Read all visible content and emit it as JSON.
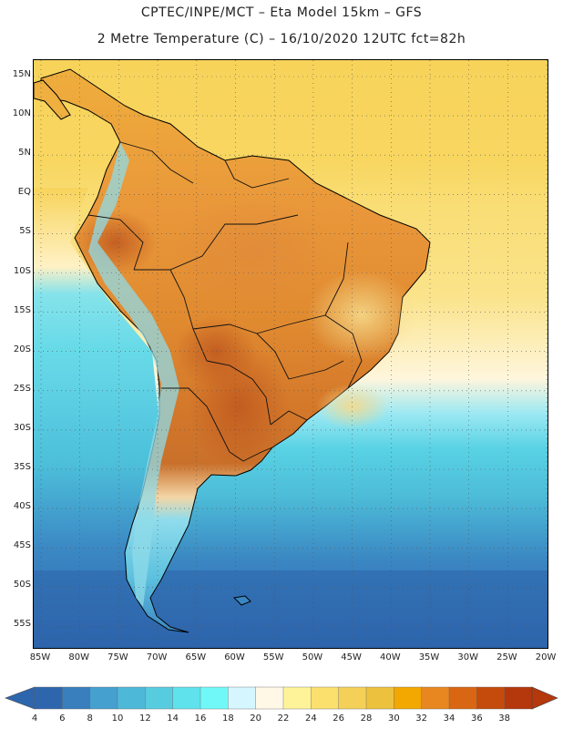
{
  "header": {
    "title_line1": "CPTEC/INPE/MCT –  Eta Model 15km – GFS",
    "title_line2": "2 Metre Temperature (C) – 16/10/2020 12UTC fct=82h"
  },
  "axes": {
    "lat_labels": [
      "15N",
      "10N",
      "5N",
      "EQ",
      "5S",
      "10S",
      "15S",
      "20S",
      "25S",
      "30S",
      "35S",
      "40S",
      "45S",
      "50S",
      "55S"
    ],
    "lon_labels": [
      "85W",
      "80W",
      "75W",
      "70W",
      "65W",
      "60W",
      "55W",
      "50W",
      "45W",
      "40W",
      "35W",
      "30W",
      "25W",
      "20W"
    ],
    "grid": true
  },
  "colorbar": {
    "ticks": [
      "4",
      "6",
      "8",
      "10",
      "12",
      "14",
      "16",
      "18",
      "20",
      "22",
      "24",
      "26",
      "28",
      "30",
      "32",
      "34",
      "36",
      "38"
    ],
    "colors": [
      "#2e66ad",
      "#3a7fbd",
      "#45a0cf",
      "#4eb8d8",
      "#58ccdf",
      "#60e2ec",
      "#70f8f8",
      "#d6f6ff",
      "#fff8e6",
      "#fff39a",
      "#fbe06e",
      "#f5d058",
      "#ecc13e",
      "#f2a800",
      "#e88720",
      "#d96612",
      "#c44b0c",
      "#b4380c"
    ]
  },
  "map": {
    "region": "South America",
    "ocean_pattern": "warm north (yellow), cool south (blue)",
    "land_hotspots": [
      "Amazon basin (orange)",
      "Chaco / Paraguay (dark orange)"
    ]
  }
}
